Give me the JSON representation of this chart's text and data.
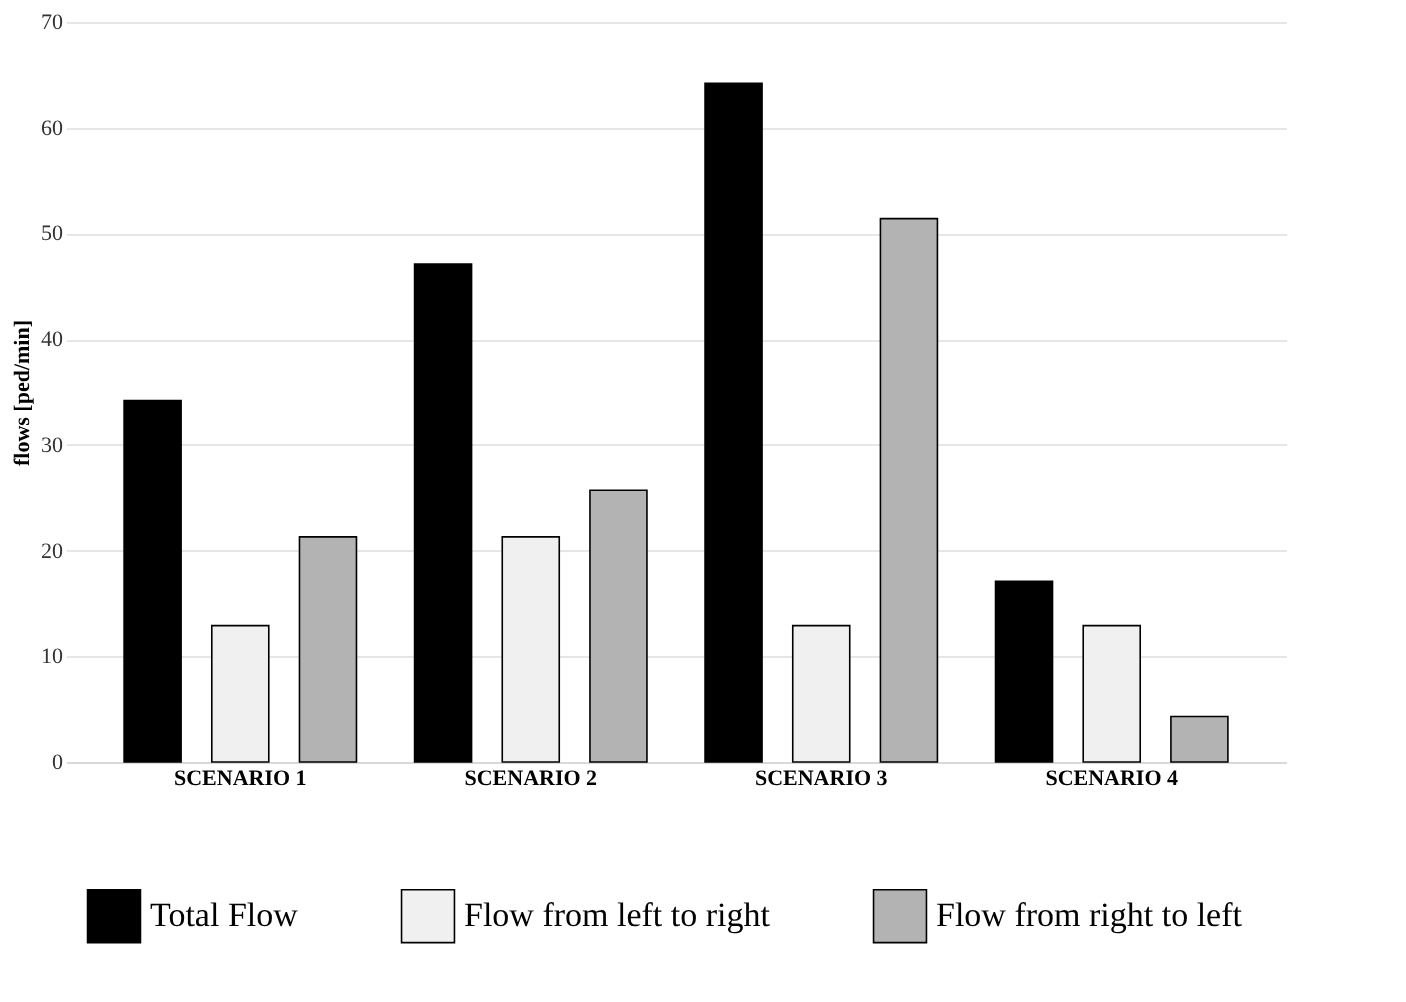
{
  "chart_data": {
    "type": "bar",
    "ylabel": "flows [ped/min]",
    "categories": [
      "SCENARIO 1",
      "SCENARIO 2",
      "SCENARIO 3",
      "SCENARIO 4"
    ],
    "series": [
      {
        "name": "Total Flow",
        "color": "#000000",
        "values": [
          34.2,
          47.1,
          64.2,
          17.1
        ]
      },
      {
        "name": "Flow from left to right",
        "color": "#f0f0f0",
        "values": [
          12.9,
          21.3,
          12.9,
          12.9
        ]
      },
      {
        "name": "Flow from right to left",
        "color": "#b3b3b3",
        "values": [
          21.3,
          25.7,
          51.4,
          4.3
        ]
      }
    ],
    "ylim": [
      0,
      70
    ],
    "yticks": [
      0,
      10,
      20,
      30,
      40,
      50,
      60,
      70
    ],
    "grid": "y",
    "legend": "bottom"
  }
}
